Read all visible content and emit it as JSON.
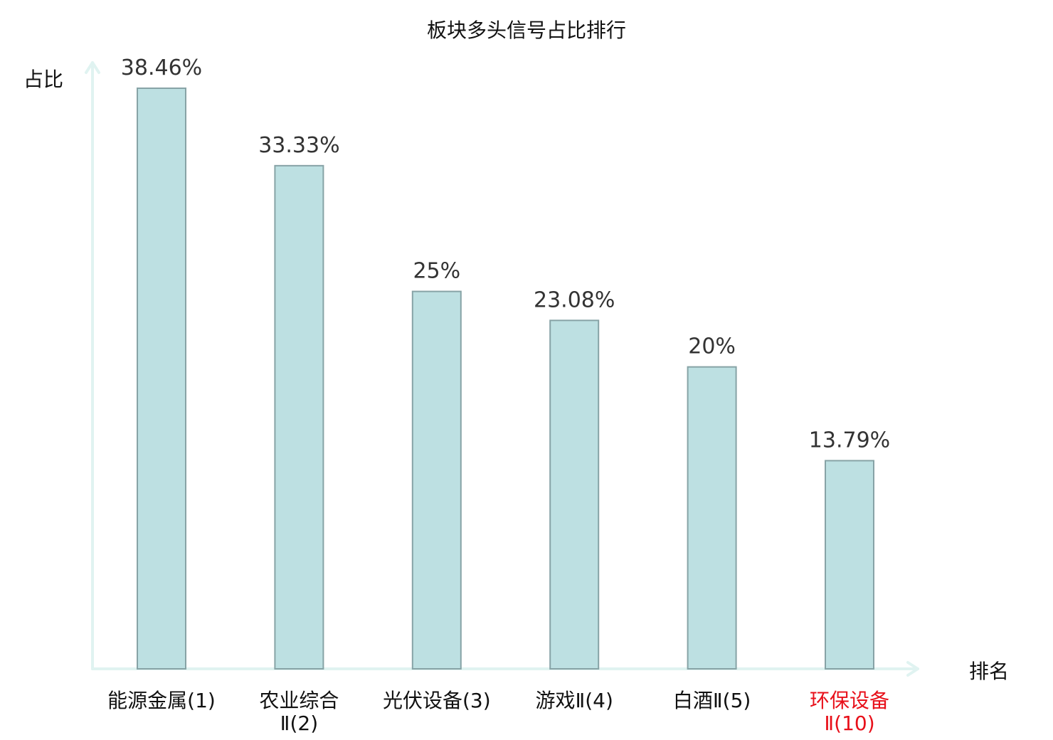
{
  "chart_data": {
    "type": "bar",
    "title": "板块多头信号占比排行",
    "ylabel": "占比",
    "xlabel": "排名",
    "categories": [
      [
        "能源金属(1)"
      ],
      [
        "农业综合",
        "Ⅱ(2)"
      ],
      [
        "光伏设备(3)"
      ],
      [
        "游戏Ⅱ(4)"
      ],
      [
        "白酒Ⅱ(5)"
      ],
      [
        "环保设备",
        "Ⅱ(10)"
      ]
    ],
    "values": [
      38.46,
      33.33,
      25,
      23.08,
      20,
      13.79
    ],
    "value_labels": [
      "38.46%",
      "33.33%",
      "25%",
      "23.08%",
      "20%",
      "13.79%"
    ],
    "highlight_index": 5,
    "ylim": [
      0,
      40
    ],
    "grid": false,
    "colors": {
      "bar_fill": "#bde0e2",
      "bar_stroke": "#87a3a6",
      "axis": "#e0f3f1",
      "highlight_text": "#e8101a",
      "text": "#111111"
    }
  }
}
